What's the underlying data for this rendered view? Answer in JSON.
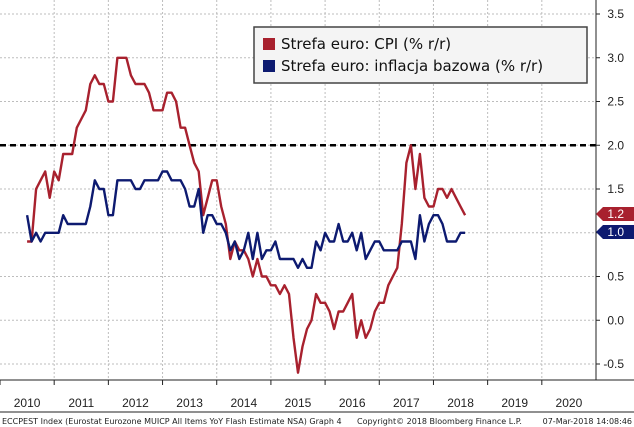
{
  "chart_data": {
    "type": "line",
    "title": "",
    "xlabel": "",
    "ylabel": "",
    "ylim": [
      -0.6,
      3.5
    ],
    "y_ticks": [
      "3.5",
      "3.0",
      "2.5",
      "2.0",
      "1.5",
      "1.0",
      "0.5",
      "0.0",
      "-0.5"
    ],
    "y_tick_values": [
      3.5,
      3.0,
      2.5,
      2.0,
      1.5,
      1.0,
      0.5,
      0.0,
      -0.5
    ],
    "x_ticks": [
      "2010",
      "2011",
      "2012",
      "2013",
      "2014",
      "2015",
      "2016",
      "2017",
      "2018",
      "2019",
      "2020"
    ],
    "x_range": [
      2009.5,
      2020.5
    ],
    "grid": true,
    "legend_position": "top-right",
    "reference_line": {
      "y": 2.0,
      "style": "dashed",
      "color": "#000000"
    },
    "series": [
      {
        "name": "Strefa euro: CPI (% r/r)",
        "color": "#a8212e",
        "last_value_label": "1.2",
        "points": [
          [
            "2010-01",
            0.9
          ],
          [
            "2010-02",
            0.9
          ],
          [
            "2010-03",
            1.5
          ],
          [
            "2010-04",
            1.6
          ],
          [
            "2010-05",
            1.7
          ],
          [
            "2010-06",
            1.4
          ],
          [
            "2010-07",
            1.7
          ],
          [
            "2010-08",
            1.6
          ],
          [
            "2010-09",
            1.9
          ],
          [
            "2010-10",
            1.9
          ],
          [
            "2010-11",
            1.9
          ],
          [
            "2010-12",
            2.2
          ],
          [
            "2011-01",
            2.3
          ],
          [
            "2011-02",
            2.4
          ],
          [
            "2011-03",
            2.7
          ],
          [
            "2011-04",
            2.8
          ],
          [
            "2011-05",
            2.7
          ],
          [
            "2011-06",
            2.7
          ],
          [
            "2011-07",
            2.5
          ],
          [
            "2011-08",
            2.5
          ],
          [
            "2011-09",
            3.0
          ],
          [
            "2011-10",
            3.0
          ],
          [
            "2011-11",
            3.0
          ],
          [
            "2011-12",
            2.8
          ],
          [
            "2012-01",
            2.7
          ],
          [
            "2012-02",
            2.7
          ],
          [
            "2012-03",
            2.7
          ],
          [
            "2012-04",
            2.6
          ],
          [
            "2012-05",
            2.4
          ],
          [
            "2012-06",
            2.4
          ],
          [
            "2012-07",
            2.4
          ],
          [
            "2012-08",
            2.6
          ],
          [
            "2012-09",
            2.6
          ],
          [
            "2012-10",
            2.5
          ],
          [
            "2012-11",
            2.2
          ],
          [
            "2012-12",
            2.2
          ],
          [
            "2013-01",
            2.0
          ],
          [
            "2013-02",
            1.8
          ],
          [
            "2013-03",
            1.7
          ],
          [
            "2013-04",
            1.2
          ],
          [
            "2013-05",
            1.4
          ],
          [
            "2013-06",
            1.6
          ],
          [
            "2013-07",
            1.6
          ],
          [
            "2013-08",
            1.3
          ],
          [
            "2013-09",
            1.1
          ],
          [
            "2013-10",
            0.7
          ],
          [
            "2013-11",
            0.9
          ],
          [
            "2013-12",
            0.8
          ],
          [
            "2014-01",
            0.8
          ],
          [
            "2014-02",
            0.7
          ],
          [
            "2014-03",
            0.5
          ],
          [
            "2014-04",
            0.7
          ],
          [
            "2014-05",
            0.5
          ],
          [
            "2014-06",
            0.5
          ],
          [
            "2014-07",
            0.4
          ],
          [
            "2014-08",
            0.4
          ],
          [
            "2014-09",
            0.3
          ],
          [
            "2014-10",
            0.4
          ],
          [
            "2014-11",
            0.3
          ],
          [
            "2014-12",
            -0.2
          ],
          [
            "2015-01",
            -0.6
          ],
          [
            "2015-02",
            -0.3
          ],
          [
            "2015-03",
            -0.1
          ],
          [
            "2015-04",
            0.0
          ],
          [
            "2015-05",
            0.3
          ],
          [
            "2015-06",
            0.2
          ],
          [
            "2015-07",
            0.2
          ],
          [
            "2015-08",
            0.1
          ],
          [
            "2015-09",
            -0.1
          ],
          [
            "2015-10",
            0.1
          ],
          [
            "2015-11",
            0.1
          ],
          [
            "2015-12",
            0.2
          ],
          [
            "2016-01",
            0.3
          ],
          [
            "2016-02",
            -0.2
          ],
          [
            "2016-03",
            0.0
          ],
          [
            "2016-04",
            -0.2
          ],
          [
            "2016-05",
            -0.1
          ],
          [
            "2016-06",
            0.1
          ],
          [
            "2016-07",
            0.2
          ],
          [
            "2016-08",
            0.2
          ],
          [
            "2016-09",
            0.4
          ],
          [
            "2016-10",
            0.5
          ],
          [
            "2016-11",
            0.6
          ],
          [
            "2016-12",
            1.1
          ],
          [
            "2017-01",
            1.8
          ],
          [
            "2017-02",
            2.0
          ],
          [
            "2017-03",
            1.5
          ],
          [
            "2017-04",
            1.9
          ],
          [
            "2017-05",
            1.4
          ],
          [
            "2017-06",
            1.3
          ],
          [
            "2017-07",
            1.3
          ],
          [
            "2017-08",
            1.5
          ],
          [
            "2017-09",
            1.5
          ],
          [
            "2017-10",
            1.4
          ],
          [
            "2017-11",
            1.5
          ],
          [
            "2017-12",
            1.4
          ],
          [
            "2018-01",
            1.3
          ],
          [
            "2018-02",
            1.2
          ]
        ]
      },
      {
        "name": "Strefa euro: inflacja bazowa (% r/r)",
        "color": "#0d1a70",
        "last_value_label": "1.0",
        "points": [
          [
            "2010-01",
            1.2
          ],
          [
            "2010-02",
            0.9
          ],
          [
            "2010-03",
            1.0
          ],
          [
            "2010-04",
            0.9
          ],
          [
            "2010-05",
            1.0
          ],
          [
            "2010-06",
            1.0
          ],
          [
            "2010-07",
            1.0
          ],
          [
            "2010-08",
            1.0
          ],
          [
            "2010-09",
            1.2
          ],
          [
            "2010-10",
            1.1
          ],
          [
            "2010-11",
            1.1
          ],
          [
            "2010-12",
            1.1
          ],
          [
            "2011-01",
            1.1
          ],
          [
            "2011-02",
            1.1
          ],
          [
            "2011-03",
            1.3
          ],
          [
            "2011-04",
            1.6
          ],
          [
            "2011-05",
            1.5
          ],
          [
            "2011-06",
            1.5
          ],
          [
            "2011-07",
            1.2
          ],
          [
            "2011-08",
            1.2
          ],
          [
            "2011-09",
            1.6
          ],
          [
            "2011-10",
            1.6
          ],
          [
            "2011-11",
            1.6
          ],
          [
            "2011-12",
            1.6
          ],
          [
            "2012-01",
            1.5
          ],
          [
            "2012-02",
            1.5
          ],
          [
            "2012-03",
            1.6
          ],
          [
            "2012-04",
            1.6
          ],
          [
            "2012-05",
            1.6
          ],
          [
            "2012-06",
            1.6
          ],
          [
            "2012-07",
            1.7
          ],
          [
            "2012-08",
            1.7
          ],
          [
            "2012-09",
            1.6
          ],
          [
            "2012-10",
            1.6
          ],
          [
            "2012-11",
            1.6
          ],
          [
            "2012-12",
            1.5
          ],
          [
            "2013-01",
            1.3
          ],
          [
            "2013-02",
            1.3
          ],
          [
            "2013-03",
            1.5
          ],
          [
            "2013-04",
            1.0
          ],
          [
            "2013-05",
            1.2
          ],
          [
            "2013-06",
            1.2
          ],
          [
            "2013-07",
            1.1
          ],
          [
            "2013-08",
            1.1
          ],
          [
            "2013-09",
            1.0
          ],
          [
            "2013-10",
            0.8
          ],
          [
            "2013-11",
            0.9
          ],
          [
            "2013-12",
            0.7
          ],
          [
            "2014-01",
            0.8
          ],
          [
            "2014-02",
            1.0
          ],
          [
            "2014-03",
            0.7
          ],
          [
            "2014-04",
            1.0
          ],
          [
            "2014-05",
            0.7
          ],
          [
            "2014-06",
            0.8
          ],
          [
            "2014-07",
            0.8
          ],
          [
            "2014-08",
            0.9
          ],
          [
            "2014-09",
            0.7
          ],
          [
            "2014-10",
            0.7
          ],
          [
            "2014-11",
            0.7
          ],
          [
            "2014-12",
            0.7
          ],
          [
            "2015-01",
            0.6
          ],
          [
            "2015-02",
            0.7
          ],
          [
            "2015-03",
            0.6
          ],
          [
            "2015-04",
            0.6
          ],
          [
            "2015-05",
            0.9
          ],
          [
            "2015-06",
            0.8
          ],
          [
            "2015-07",
            1.0
          ],
          [
            "2015-08",
            0.9
          ],
          [
            "2015-09",
            0.9
          ],
          [
            "2015-10",
            1.1
          ],
          [
            "2015-11",
            0.9
          ],
          [
            "2015-12",
            0.9
          ],
          [
            "2016-01",
            1.0
          ],
          [
            "2016-02",
            0.8
          ],
          [
            "2016-03",
            1.0
          ],
          [
            "2016-04",
            0.7
          ],
          [
            "2016-05",
            0.8
          ],
          [
            "2016-06",
            0.9
          ],
          [
            "2016-07",
            0.9
          ],
          [
            "2016-08",
            0.8
          ],
          [
            "2016-09",
            0.8
          ],
          [
            "2016-10",
            0.8
          ],
          [
            "2016-11",
            0.8
          ],
          [
            "2016-12",
            0.9
          ],
          [
            "2017-01",
            0.9
          ],
          [
            "2017-02",
            0.9
          ],
          [
            "2017-03",
            0.7
          ],
          [
            "2017-04",
            1.2
          ],
          [
            "2017-05",
            0.9
          ],
          [
            "2017-06",
            1.1
          ],
          [
            "2017-07",
            1.2
          ],
          [
            "2017-08",
            1.2
          ],
          [
            "2017-09",
            1.1
          ],
          [
            "2017-10",
            0.9
          ],
          [
            "2017-11",
            0.9
          ],
          [
            "2017-12",
            0.9
          ],
          [
            "2018-01",
            1.0
          ],
          [
            "2018-02",
            1.0
          ]
        ]
      }
    ]
  },
  "footer": {
    "source": "ECCPEST Index (Eurostat Eurozone MUICP All Items YoY Flash Estimate NSA) Graph 4",
    "copyright": "Copyright© 2018 Bloomberg Finance L.P.",
    "timestamp": "07-Mar-2018 14:08:46"
  }
}
